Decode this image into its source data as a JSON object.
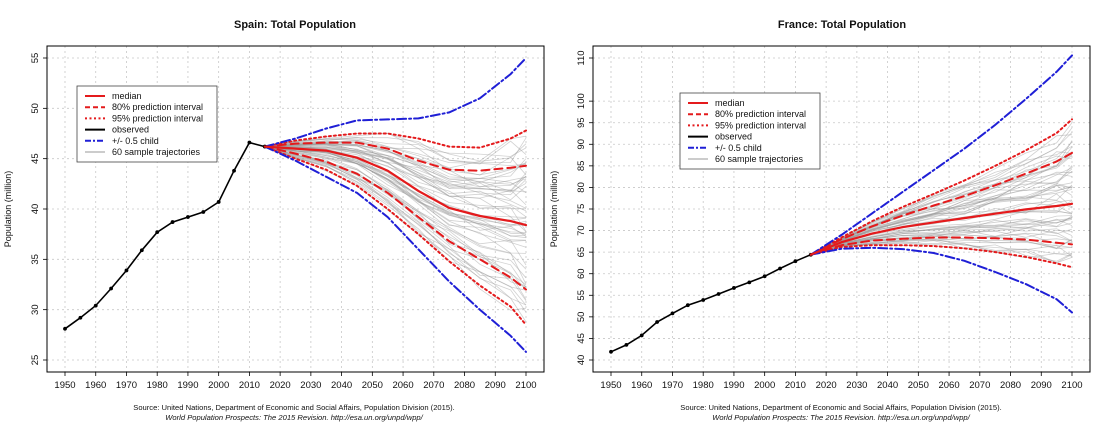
{
  "chart_data": [
    {
      "type": "line",
      "title": "Spain: Total Population",
      "xlabel": "",
      "ylabel": "Population (million)",
      "xlim": [
        1950,
        2100
      ],
      "ylim": [
        25,
        55
      ],
      "xticks": [
        1950,
        1960,
        1970,
        1980,
        1990,
        2000,
        2010,
        2020,
        2030,
        2040,
        2050,
        2060,
        2070,
        2080,
        2090,
        2100
      ],
      "yticks": [
        25,
        30,
        35,
        40,
        45,
        50,
        55
      ],
      "grid": true,
      "legend_position": "top-left",
      "legend": [
        "median",
        "80% prediction interval",
        "95% prediction interval",
        "observed",
        "+/- 0.5 child",
        "60 sample trajectories"
      ],
      "source": "Source: United Nations, Department of Economic and Social Affairs, Population Division (2015).",
      "source_italic": "World Population Prospects: The 2015 Revision. http://esa.un.org/unpd/wpp/",
      "series": [
        {
          "name": "observed",
          "color": "#000000",
          "style": "solid-dots",
          "x": [
            1950,
            1955,
            1960,
            1965,
            1970,
            1975,
            1980,
            1985,
            1990,
            1995,
            2000,
            2005,
            2010,
            2015
          ],
          "values": [
            28.1,
            29.2,
            30.4,
            32.1,
            33.9,
            35.9,
            37.7,
            38.7,
            39.2,
            39.7,
            40.7,
            43.8,
            46.6,
            46.2
          ]
        },
        {
          "name": "median",
          "color": "#e41a1c",
          "style": "solid",
          "x": [
            2015,
            2025,
            2035,
            2045,
            2055,
            2065,
            2075,
            2085,
            2095,
            2100
          ],
          "values": [
            46.2,
            46.0,
            45.8,
            45.1,
            43.8,
            41.8,
            40.1,
            39.3,
            38.8,
            38.4
          ]
        },
        {
          "name": "80% upper",
          "color": "#e41a1c",
          "style": "dashed",
          "x": [
            2015,
            2025,
            2035,
            2045,
            2055,
            2065,
            2075,
            2085,
            2095,
            2100
          ],
          "values": [
            46.2,
            46.5,
            46.6,
            46.6,
            46.0,
            44.8,
            43.9,
            43.8,
            44.1,
            44.3
          ]
        },
        {
          "name": "80% lower",
          "color": "#e41a1c",
          "style": "dashed",
          "x": [
            2015,
            2025,
            2035,
            2045,
            2055,
            2065,
            2075,
            2085,
            2095,
            2100
          ],
          "values": [
            46.2,
            45.5,
            44.7,
            43.5,
            41.6,
            39.2,
            36.8,
            35.0,
            33.2,
            32.0
          ]
        },
        {
          "name": "95% upper",
          "color": "#e41a1c",
          "style": "dotted",
          "x": [
            2015,
            2025,
            2035,
            2045,
            2055,
            2065,
            2075,
            2085,
            2095,
            2100
          ],
          "values": [
            46.2,
            46.8,
            47.2,
            47.5,
            47.5,
            47.0,
            46.2,
            46.1,
            47.0,
            47.8
          ]
        },
        {
          "name": "95% lower",
          "color": "#e41a1c",
          "style": "dotted",
          "x": [
            2015,
            2025,
            2035,
            2045,
            2055,
            2065,
            2075,
            2085,
            2095,
            2100
          ],
          "values": [
            46.2,
            45.0,
            43.9,
            42.3,
            40.0,
            37.5,
            34.8,
            32.4,
            30.3,
            28.5
          ]
        },
        {
          "name": "+0.5 child",
          "color": "#1f1fd6",
          "style": "dashdot",
          "x": [
            2015,
            2025,
            2035,
            2045,
            2055,
            2065,
            2075,
            2085,
            2095,
            2100
          ],
          "values": [
            46.2,
            47.0,
            48.0,
            48.8,
            48.9,
            49.0,
            49.6,
            51.0,
            53.4,
            55.0
          ]
        },
        {
          "name": "-0.5 child",
          "color": "#1f1fd6",
          "style": "dashdot",
          "x": [
            2015,
            2025,
            2035,
            2045,
            2055,
            2065,
            2075,
            2085,
            2095,
            2100
          ],
          "values": [
            46.2,
            44.8,
            43.2,
            41.6,
            39.2,
            36.0,
            32.8,
            30.0,
            27.4,
            25.8
          ]
        }
      ]
    },
    {
      "type": "line",
      "title": "France: Total Population",
      "xlabel": "",
      "ylabel": "Population (million)",
      "xlim": [
        1950,
        2100
      ],
      "ylim": [
        40,
        110
      ],
      "xticks": [
        1950,
        1960,
        1970,
        1980,
        1990,
        2000,
        2010,
        2020,
        2030,
        2040,
        2050,
        2060,
        2070,
        2080,
        2090,
        2100
      ],
      "yticks": [
        40,
        45,
        50,
        55,
        60,
        65,
        70,
        75,
        80,
        85,
        90,
        95,
        100,
        110
      ],
      "grid": true,
      "legend_position": "top-left",
      "legend": [
        "median",
        "80% prediction interval",
        "95% prediction interval",
        "observed",
        "+/- 0.5 child",
        "60 sample trajectories"
      ],
      "source": "Source: United Nations, Department of Economic and Social Affairs, Population Division (2015).",
      "source_italic": "World Population Prospects: The 2015 Revision. http://esa.un.org/unpd/wpp/",
      "series": [
        {
          "name": "observed",
          "color": "#000000",
          "style": "solid-dots",
          "x": [
            1950,
            1955,
            1960,
            1965,
            1970,
            1975,
            1980,
            1985,
            1990,
            1995,
            2000,
            2005,
            2010,
            2015
          ],
          "values": [
            41.9,
            43.5,
            45.7,
            48.8,
            50.8,
            52.7,
            53.9,
            55.3,
            56.7,
            58.0,
            59.4,
            61.2,
            62.9,
            64.4
          ]
        },
        {
          "name": "median",
          "color": "#e41a1c",
          "style": "solid",
          "x": [
            2015,
            2025,
            2035,
            2045,
            2055,
            2065,
            2075,
            2085,
            2095,
            2100
          ],
          "values": [
            64.4,
            67.3,
            69.3,
            70.8,
            71.9,
            72.9,
            73.9,
            74.9,
            75.7,
            76.2
          ]
        },
        {
          "name": "80% upper",
          "color": "#e41a1c",
          "style": "dashed",
          "x": [
            2015,
            2025,
            2035,
            2045,
            2055,
            2065,
            2075,
            2085,
            2095,
            2100
          ],
          "values": [
            64.4,
            68.0,
            71.0,
            73.5,
            75.8,
            78.0,
            80.5,
            83.2,
            86.0,
            88.0
          ]
        },
        {
          "name": "80% lower",
          "color": "#e41a1c",
          "style": "dashed",
          "x": [
            2015,
            2025,
            2035,
            2045,
            2055,
            2065,
            2075,
            2085,
            2095,
            2100
          ],
          "values": [
            64.4,
            66.6,
            67.7,
            68.1,
            68.4,
            68.4,
            68.2,
            67.9,
            67.2,
            66.8
          ]
        },
        {
          "name": "95% upper",
          "color": "#e41a1c",
          "style": "dotted",
          "x": [
            2015,
            2025,
            2035,
            2045,
            2055,
            2065,
            2075,
            2085,
            2095,
            2100
          ],
          "values": [
            64.4,
            68.4,
            72.2,
            75.5,
            78.5,
            81.6,
            85.0,
            88.6,
            92.6,
            95.8
          ]
        },
        {
          "name": "95% lower",
          "color": "#e41a1c",
          "style": "dotted",
          "x": [
            2015,
            2025,
            2035,
            2045,
            2055,
            2065,
            2075,
            2085,
            2095,
            2100
          ],
          "values": [
            64.4,
            66.2,
            66.6,
            66.6,
            66.4,
            65.9,
            65.0,
            63.9,
            62.4,
            61.5
          ]
        },
        {
          "name": "+0.5 child",
          "color": "#1f1fd6",
          "style": "dashdot",
          "x": [
            2015,
            2025,
            2035,
            2045,
            2055,
            2065,
            2075,
            2085,
            2095,
            2100
          ],
          "values": [
            64.4,
            69.0,
            74.0,
            79.0,
            84.0,
            89.0,
            94.5,
            100.5,
            106.8,
            110.6
          ]
        },
        {
          "name": "-0.5 child",
          "color": "#1f1fd6",
          "style": "dashdot",
          "x": [
            2015,
            2025,
            2035,
            2045,
            2055,
            2065,
            2075,
            2085,
            2095,
            2100
          ],
          "values": [
            64.4,
            65.8,
            66.0,
            65.7,
            64.8,
            63.0,
            60.4,
            57.6,
            54.1,
            51.0
          ]
        }
      ]
    }
  ]
}
